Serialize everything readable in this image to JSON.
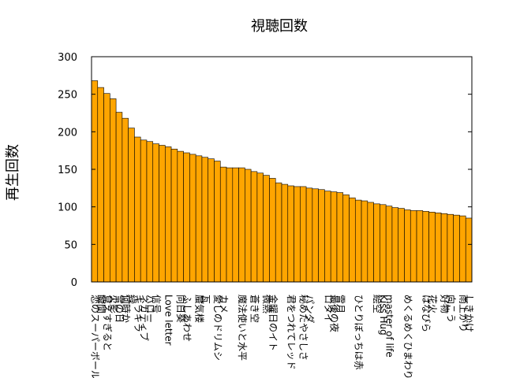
{
  "chart_data": {
    "type": "bar",
    "title": "視聴回数",
    "xlabel": "",
    "ylabel": "再生回数",
    "ylim": [
      0,
      300
    ],
    "yticks": [
      0,
      50,
      100,
      150,
      200,
      250,
      300
    ],
    "grid": false,
    "legend": "none",
    "bar_color": "#ffa500",
    "bar_edge_color": "#000000",
    "categories": [
      "恋のスーパーボール",
      "瞬間",
      "見えすぎると",
      "火影",
      "雪の日",
      "何時か",
      "緑",
      "キラキラ",
      "ネガティブ",
      "ハロー",
      "信号",
      "",
      "Love letter",
      "",
      "向日葵",
      "ふしあわせ",
      "",
      "蜃気楼",
      "瓦",
      "",
      "愛しのドリムシ",
      "カメ",
      "",
      "",
      "魔法使いと水平",
      "",
      "蒼き空",
      "",
      "微熱",
      "金曜日のイト",
      "",
      "",
      "君をつれてレッド",
      "",
      "秘めたやさしさ",
      "パンダ",
      "",
      "",
      "ロタイ",
      "最後の夜",
      "雪月",
      "",
      "",
      "ひとりぼっちは赤",
      "",
      "",
      "絵空",
      "Kiss Hug",
      "master of life",
      "",
      "",
      "めくるめくひまわり",
      "",
      "",
      "はなびら",
      "花火",
      "",
      "好物",
      "向こう",
      "",
      "雨上がり",
      "しきかけ"
    ],
    "values": [
      268,
      259,
      251,
      244,
      226,
      218,
      205,
      193,
      189,
      187,
      184,
      182,
      180,
      177,
      174,
      172,
      170,
      168,
      166,
      164,
      161,
      153,
      152,
      152,
      152,
      150,
      147,
      145,
      142,
      138,
      132,
      130,
      128,
      127,
      127,
      125,
      124,
      123,
      121,
      120,
      119,
      116,
      112,
      109,
      108,
      106,
      104,
      103,
      101,
      99,
      98,
      96,
      95,
      95,
      94,
      93,
      92,
      91,
      90,
      89,
      88,
      85
    ]
  }
}
